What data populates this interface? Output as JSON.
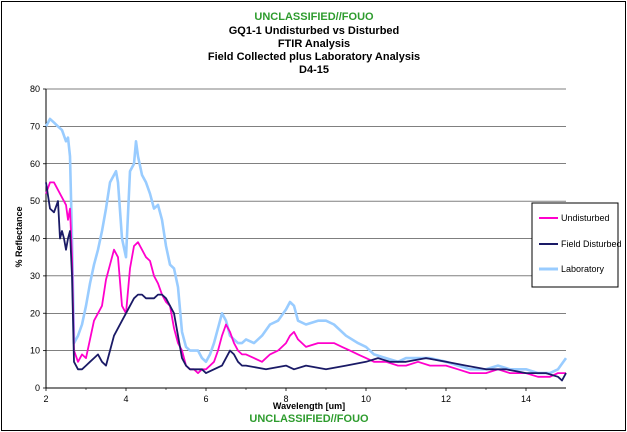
{
  "chart_data": {
    "type": "line",
    "classification_top": "UNCLASSIFIED//FOUO",
    "classification_bottom": "UNCLASSIFIED//FOUO",
    "title_lines": [
      "GQ1-1 Undisturbed vs Disturbed",
      "FTIR Analysis",
      "Field Collected plus Laboratory Analysis",
      "D4-15"
    ],
    "xlabel": "Wavelength [um]",
    "ylabel": "% Reflectance",
    "xlim": [
      2,
      15
    ],
    "ylim": [
      0,
      80
    ],
    "x_ticks": [
      2,
      4,
      6,
      8,
      10,
      12,
      14
    ],
    "y_ticks": [
      0,
      10,
      20,
      30,
      40,
      50,
      60,
      70,
      80
    ],
    "grid": "horizontal",
    "legend_position": "right",
    "series": [
      {
        "name": "Undisturbed",
        "color": "#ff00cc",
        "points": [
          [
            2.0,
            52
          ],
          [
            2.1,
            55
          ],
          [
            2.2,
            55
          ],
          [
            2.3,
            53
          ],
          [
            2.4,
            51
          ],
          [
            2.5,
            49
          ],
          [
            2.55,
            45
          ],
          [
            2.6,
            48
          ],
          [
            2.65,
            35
          ],
          [
            2.7,
            10
          ],
          [
            2.8,
            7
          ],
          [
            2.9,
            9
          ],
          [
            3.0,
            8
          ],
          [
            3.1,
            13
          ],
          [
            3.2,
            18
          ],
          [
            3.3,
            20
          ],
          [
            3.4,
            22
          ],
          [
            3.5,
            29
          ],
          [
            3.6,
            33
          ],
          [
            3.7,
            37
          ],
          [
            3.8,
            35
          ],
          [
            3.9,
            22
          ],
          [
            4.0,
            20
          ],
          [
            4.1,
            32
          ],
          [
            4.2,
            38
          ],
          [
            4.3,
            39
          ],
          [
            4.4,
            37
          ],
          [
            4.5,
            35
          ],
          [
            4.6,
            34
          ],
          [
            4.7,
            30
          ],
          [
            4.8,
            28
          ],
          [
            4.9,
            25
          ],
          [
            5.0,
            23
          ],
          [
            5.1,
            22
          ],
          [
            5.2,
            16
          ],
          [
            5.3,
            12
          ],
          [
            5.4,
            10
          ],
          [
            5.5,
            6
          ],
          [
            5.6,
            5
          ],
          [
            5.7,
            5
          ],
          [
            5.8,
            4
          ],
          [
            5.9,
            5
          ],
          [
            6.0,
            5
          ],
          [
            6.1,
            6
          ],
          [
            6.2,
            7
          ],
          [
            6.3,
            10
          ],
          [
            6.4,
            14
          ],
          [
            6.5,
            17
          ],
          [
            6.6,
            15
          ],
          [
            6.7,
            12
          ],
          [
            6.8,
            10
          ],
          [
            6.9,
            9
          ],
          [
            7.0,
            9
          ],
          [
            7.2,
            8
          ],
          [
            7.4,
            7
          ],
          [
            7.6,
            9
          ],
          [
            7.8,
            10
          ],
          [
            8.0,
            12
          ],
          [
            8.1,
            14
          ],
          [
            8.2,
            15
          ],
          [
            8.3,
            13
          ],
          [
            8.5,
            11
          ],
          [
            8.8,
            12
          ],
          [
            9.0,
            12
          ],
          [
            9.2,
            12
          ],
          [
            9.4,
            11
          ],
          [
            9.6,
            10
          ],
          [
            9.8,
            9
          ],
          [
            10.0,
            8
          ],
          [
            10.2,
            7
          ],
          [
            10.5,
            7
          ],
          [
            10.8,
            6
          ],
          [
            11.0,
            6
          ],
          [
            11.3,
            7
          ],
          [
            11.6,
            6
          ],
          [
            12.0,
            6
          ],
          [
            12.3,
            5
          ],
          [
            12.6,
            4
          ],
          [
            13.0,
            4
          ],
          [
            13.3,
            5
          ],
          [
            13.6,
            4
          ],
          [
            14.0,
            4
          ],
          [
            14.3,
            3
          ],
          [
            14.6,
            3
          ],
          [
            14.8,
            4
          ],
          [
            15.0,
            4
          ]
        ]
      },
      {
        "name": "Field Disturbed",
        "color": "#1a1a66",
        "points": [
          [
            2.0,
            55
          ],
          [
            2.1,
            48
          ],
          [
            2.2,
            47
          ],
          [
            2.3,
            50
          ],
          [
            2.35,
            40
          ],
          [
            2.4,
            42
          ],
          [
            2.45,
            40
          ],
          [
            2.5,
            37
          ],
          [
            2.55,
            40
          ],
          [
            2.6,
            42
          ],
          [
            2.65,
            30
          ],
          [
            2.7,
            7
          ],
          [
            2.8,
            5
          ],
          [
            2.9,
            5
          ],
          [
            3.0,
            6
          ],
          [
            3.1,
            7
          ],
          [
            3.2,
            8
          ],
          [
            3.3,
            9
          ],
          [
            3.4,
            7
          ],
          [
            3.5,
            6
          ],
          [
            3.6,
            10
          ],
          [
            3.7,
            14
          ],
          [
            3.8,
            16
          ],
          [
            3.9,
            18
          ],
          [
            4.0,
            20
          ],
          [
            4.1,
            22
          ],
          [
            4.2,
            24
          ],
          [
            4.3,
            25
          ],
          [
            4.4,
            25
          ],
          [
            4.5,
            24
          ],
          [
            4.6,
            24
          ],
          [
            4.7,
            24
          ],
          [
            4.8,
            25
          ],
          [
            4.9,
            25
          ],
          [
            5.0,
            24
          ],
          [
            5.1,
            22
          ],
          [
            5.2,
            20
          ],
          [
            5.3,
            14
          ],
          [
            5.4,
            8
          ],
          [
            5.5,
            6
          ],
          [
            5.6,
            5
          ],
          [
            5.7,
            5
          ],
          [
            5.8,
            5
          ],
          [
            5.9,
            5
          ],
          [
            6.0,
            4
          ],
          [
            6.2,
            5
          ],
          [
            6.4,
            6
          ],
          [
            6.5,
            8
          ],
          [
            6.6,
            10
          ],
          [
            6.7,
            9
          ],
          [
            6.8,
            7
          ],
          [
            6.9,
            6
          ],
          [
            7.0,
            6
          ],
          [
            7.5,
            5
          ],
          [
            8.0,
            6
          ],
          [
            8.2,
            5
          ],
          [
            8.5,
            6
          ],
          [
            9.0,
            5
          ],
          [
            9.5,
            6
          ],
          [
            10.0,
            7
          ],
          [
            10.3,
            8
          ],
          [
            10.6,
            7
          ],
          [
            11.0,
            7
          ],
          [
            11.5,
            8
          ],
          [
            12.0,
            7
          ],
          [
            12.5,
            6
          ],
          [
            13.0,
            5
          ],
          [
            13.5,
            5
          ],
          [
            14.0,
            4
          ],
          [
            14.5,
            4
          ],
          [
            14.8,
            3
          ],
          [
            14.9,
            2
          ],
          [
            15.0,
            4
          ]
        ]
      },
      {
        "name": "Laboratory",
        "color": "#99ccff",
        "points": [
          [
            2.0,
            70
          ],
          [
            2.1,
            72
          ],
          [
            2.2,
            71
          ],
          [
            2.3,
            70
          ],
          [
            2.4,
            69
          ],
          [
            2.5,
            66
          ],
          [
            2.55,
            67
          ],
          [
            2.6,
            62
          ],
          [
            2.65,
            40
          ],
          [
            2.7,
            12
          ],
          [
            2.8,
            14
          ],
          [
            2.9,
            17
          ],
          [
            3.0,
            22
          ],
          [
            3.1,
            28
          ],
          [
            3.2,
            33
          ],
          [
            3.3,
            37
          ],
          [
            3.4,
            42
          ],
          [
            3.5,
            48
          ],
          [
            3.6,
            55
          ],
          [
            3.7,
            57
          ],
          [
            3.75,
            58
          ],
          [
            3.8,
            55
          ],
          [
            3.9,
            40
          ],
          [
            4.0,
            35
          ],
          [
            4.1,
            58
          ],
          [
            4.2,
            60
          ],
          [
            4.25,
            66
          ],
          [
            4.3,
            62
          ],
          [
            4.4,
            57
          ],
          [
            4.5,
            55
          ],
          [
            4.6,
            52
          ],
          [
            4.7,
            48
          ],
          [
            4.8,
            49
          ],
          [
            4.9,
            45
          ],
          [
            5.0,
            38
          ],
          [
            5.1,
            33
          ],
          [
            5.2,
            32
          ],
          [
            5.3,
            27
          ],
          [
            5.4,
            15
          ],
          [
            5.5,
            11
          ],
          [
            5.6,
            10
          ],
          [
            5.7,
            10
          ],
          [
            5.8,
            10
          ],
          [
            5.9,
            8
          ],
          [
            6.0,
            7
          ],
          [
            6.1,
            9
          ],
          [
            6.2,
            12
          ],
          [
            6.3,
            16
          ],
          [
            6.4,
            20
          ],
          [
            6.5,
            18
          ],
          [
            6.6,
            14
          ],
          [
            6.7,
            13
          ],
          [
            6.8,
            12
          ],
          [
            6.9,
            12
          ],
          [
            7.0,
            13
          ],
          [
            7.2,
            12
          ],
          [
            7.4,
            14
          ],
          [
            7.6,
            17
          ],
          [
            7.8,
            18
          ],
          [
            8.0,
            21
          ],
          [
            8.1,
            23
          ],
          [
            8.2,
            22
          ],
          [
            8.3,
            18
          ],
          [
            8.5,
            17
          ],
          [
            8.8,
            18
          ],
          [
            9.0,
            18
          ],
          [
            9.2,
            17
          ],
          [
            9.5,
            14
          ],
          [
            9.8,
            12
          ],
          [
            10.0,
            11
          ],
          [
            10.2,
            9
          ],
          [
            10.5,
            8
          ],
          [
            10.8,
            7
          ],
          [
            11.0,
            8
          ],
          [
            11.3,
            8
          ],
          [
            11.6,
            8
          ],
          [
            12.0,
            7
          ],
          [
            12.3,
            6
          ],
          [
            12.6,
            5
          ],
          [
            13.0,
            5
          ],
          [
            13.3,
            6
          ],
          [
            13.6,
            5
          ],
          [
            14.0,
            5
          ],
          [
            14.3,
            4
          ],
          [
            14.6,
            4
          ],
          [
            14.8,
            5
          ],
          [
            15.0,
            8
          ]
        ]
      }
    ]
  }
}
